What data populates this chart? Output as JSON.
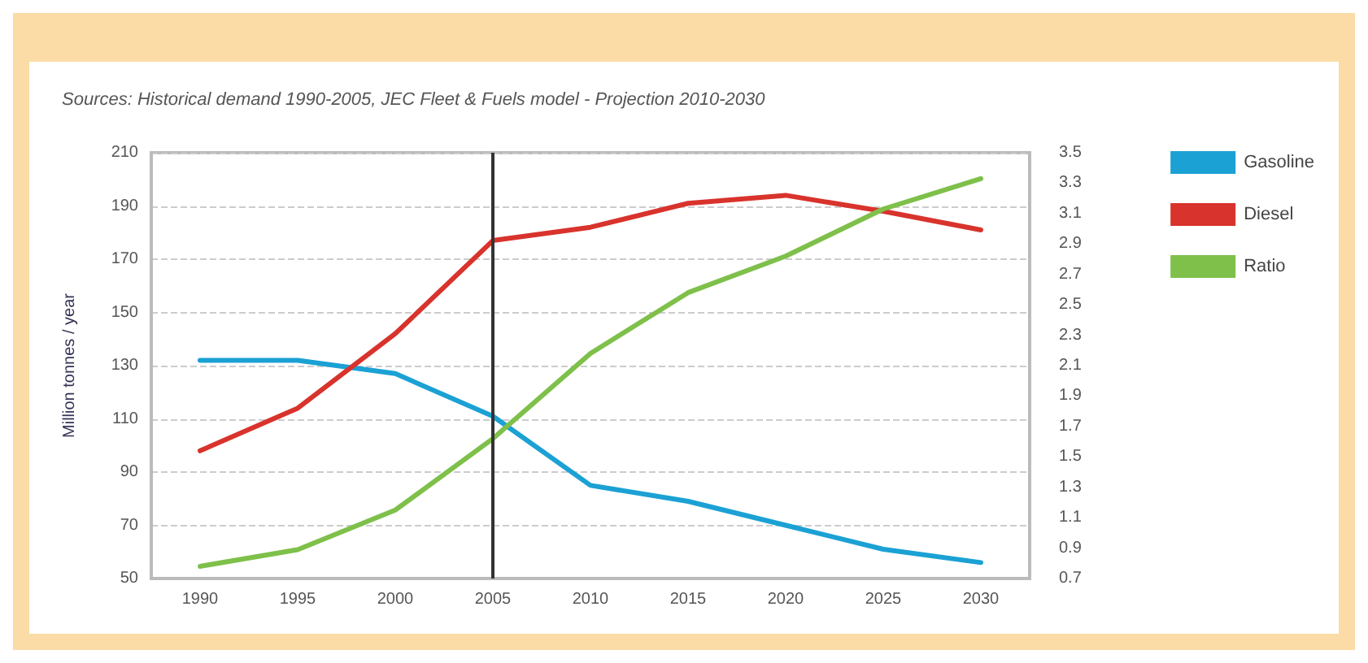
{
  "chart_data": {
    "type": "line",
    "annotations": [
      "Sources: Historical demand 1990-2005, JEC Fleet & Fuels model - Projection 2010-2030"
    ],
    "ylabel": "Million tonnes / year",
    "categories": [
      "1990",
      "1995",
      "2000",
      "2005",
      "2010",
      "2015",
      "2020",
      "2025",
      "2030"
    ],
    "series": [
      {
        "name": "Gasoline",
        "color": "#1ba1d4",
        "values": [
          132,
          132,
          127,
          111,
          85,
          79,
          70,
          61,
          56
        ]
      },
      {
        "name": "Diesel",
        "color": "#d8332c",
        "values": [
          98,
          114,
          142,
          177,
          182,
          191,
          194,
          188,
          181
        ]
      },
      {
        "name": "Ratio",
        "color": "#7ec04a",
        "axis": "y2",
        "values": [
          0.78,
          0.89,
          1.15,
          1.62,
          2.18,
          2.58,
          2.82,
          3.13,
          3.33
        ]
      }
    ],
    "ylim": [
      50,
      210
    ],
    "yticks": [
      50,
      70,
      90,
      110,
      130,
      150,
      170,
      190,
      210
    ],
    "y2lim": [
      0.7,
      3.5
    ],
    "y2ticks": [
      0.7,
      0.9,
      1.1,
      1.3,
      1.5,
      1.7,
      1.9,
      2.1,
      2.3,
      2.5,
      2.7,
      2.9,
      3.1,
      3.3,
      3.5
    ],
    "ref_lines": [
      {
        "axis": "x",
        "value": "2005",
        "color": "#333333"
      }
    ],
    "grid": "y",
    "legend": "right",
    "marker": "none",
    "line_style": "solid"
  }
}
